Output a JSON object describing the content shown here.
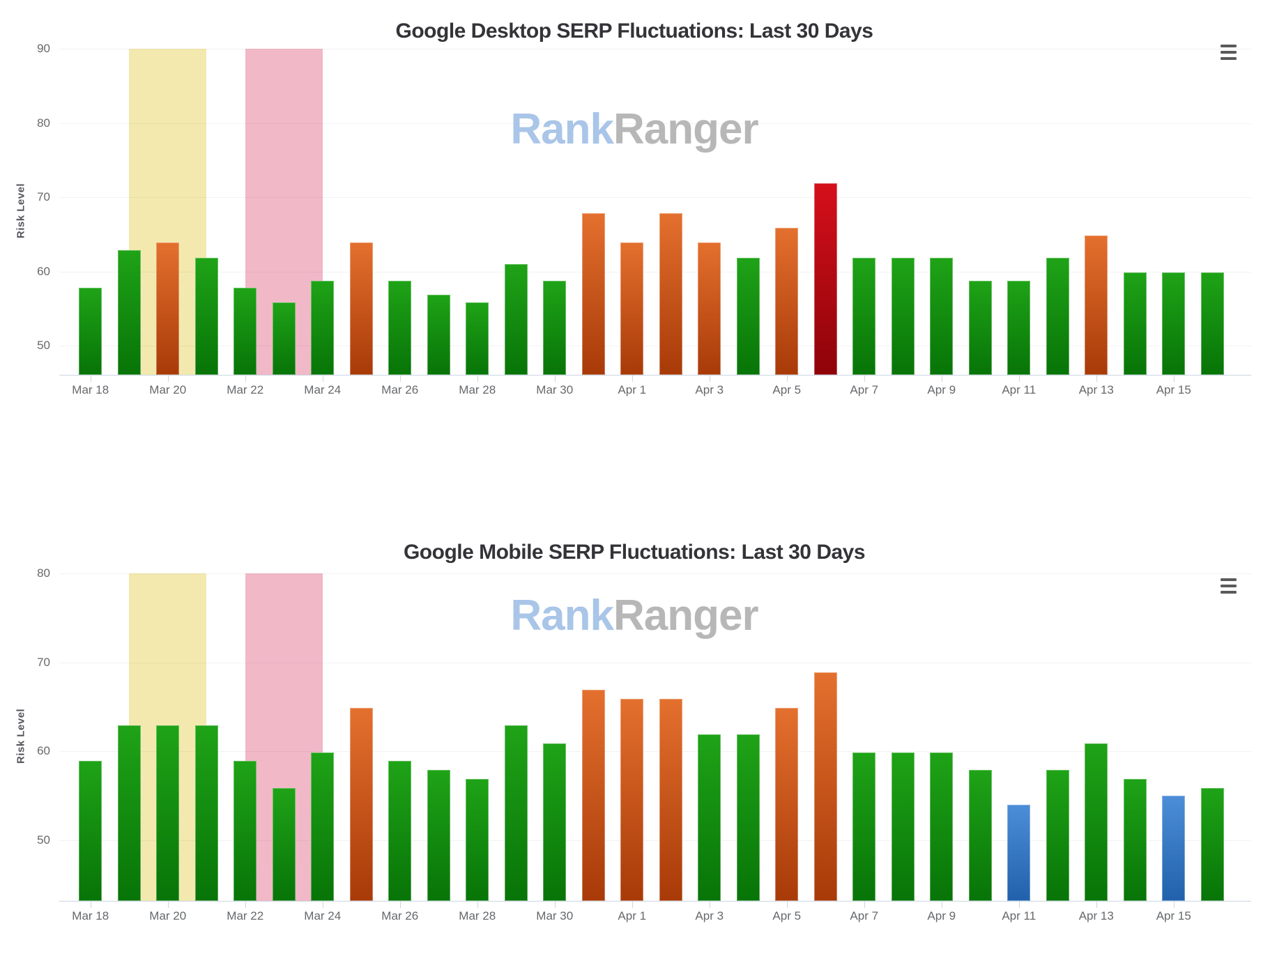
{
  "colors": {
    "levels": {
      "green": [
        "#1fa317",
        "#077407"
      ],
      "orange": [
        "#e4702e",
        "#a83a08"
      ],
      "red": [
        "#d5101b",
        "#8e0309"
      ],
      "blue": [
        "#4d8ed8",
        "#2161ac"
      ]
    },
    "band_yellow": "#f3e9ae",
    "band_pink": "#f1b8c7",
    "axis_line": "#c9d6e4",
    "grid_line": "#ececec",
    "tick_text": "#66686b",
    "title_text": "#333338",
    "watermark_blue": "#a9c5e8",
    "watermark_gray": "#b7b7b7"
  },
  "chart_data": [
    {
      "type": "bar",
      "title": "Google Desktop SERP Fluctuations: Last 30 Days",
      "y_axis_label": "Risk Level",
      "watermark": {
        "part1": "Rank",
        "part2": "Ranger"
      },
      "menu_icon": "hamburger-icon",
      "y_ticks": [
        90,
        80,
        70,
        60,
        50
      ],
      "y_max": 90,
      "y_min": 46.1,
      "grid": true,
      "x_tick_labels": [
        "Mar 18",
        "Mar 20",
        "Mar 22",
        "Mar 24",
        "Mar 26",
        "Mar 28",
        "Mar 30",
        "Apr 1",
        "Apr 3",
        "Apr 5",
        "Apr 7",
        "Apr 9",
        "Apr 11",
        "Apr 13",
        "Apr 15"
      ],
      "bands": [
        {
          "name": "yellow-highlight",
          "from_index": 1,
          "to_index": 3,
          "color": "#f3e9ae"
        },
        {
          "name": "pink-highlight",
          "from_index": 4,
          "to_index": 6,
          "color": "#f1b8c7"
        }
      ],
      "points": [
        {
          "date": "Mar 18",
          "value": 57.8,
          "level": "green"
        },
        {
          "date": "Mar 19",
          "value": 62.9,
          "level": "green"
        },
        {
          "date": "Mar 20",
          "value": 63.9,
          "level": "orange"
        },
        {
          "date": "Mar 21",
          "value": 61.9,
          "level": "green"
        },
        {
          "date": "Mar 22",
          "value": 57.8,
          "level": "green"
        },
        {
          "date": "Mar 23",
          "value": 55.9,
          "level": "green"
        },
        {
          "date": "Mar 24",
          "value": 58.8,
          "level": "green"
        },
        {
          "date": "Mar 25",
          "value": 63.9,
          "level": "orange"
        },
        {
          "date": "Mar 26",
          "value": 58.8,
          "level": "green"
        },
        {
          "date": "Mar 27",
          "value": 56.9,
          "level": "green"
        },
        {
          "date": "Mar 28",
          "value": 55.9,
          "level": "green"
        },
        {
          "date": "Mar 29",
          "value": 61.0,
          "level": "green"
        },
        {
          "date": "Mar 30",
          "value": 58.8,
          "level": "green"
        },
        {
          "date": "Mar 31",
          "value": 67.9,
          "level": "orange"
        },
        {
          "date": "Apr 1",
          "value": 63.9,
          "level": "orange"
        },
        {
          "date": "Apr 2",
          "value": 67.9,
          "level": "orange"
        },
        {
          "date": "Apr 3",
          "value": 63.9,
          "level": "orange"
        },
        {
          "date": "Apr 4",
          "value": 61.9,
          "level": "green"
        },
        {
          "date": "Apr 5",
          "value": 65.9,
          "level": "orange"
        },
        {
          "date": "Apr 6",
          "value": 71.9,
          "level": "red"
        },
        {
          "date": "Apr 7",
          "value": 61.9,
          "level": "green"
        },
        {
          "date": "Apr 8",
          "value": 61.9,
          "level": "green"
        },
        {
          "date": "Apr 9",
          "value": 61.9,
          "level": "green"
        },
        {
          "date": "Apr 10",
          "value": 58.8,
          "level": "green"
        },
        {
          "date": "Apr 11",
          "value": 58.8,
          "level": "green"
        },
        {
          "date": "Apr 12",
          "value": 61.9,
          "level": "green"
        },
        {
          "date": "Apr 13",
          "value": 64.9,
          "level": "orange"
        },
        {
          "date": "Apr 14",
          "value": 59.9,
          "level": "green"
        },
        {
          "date": "Apr 15",
          "value": 59.9,
          "level": "green"
        },
        {
          "date": "Apr 16",
          "value": 59.9,
          "level": "green"
        }
      ]
    },
    {
      "type": "bar",
      "title": "Google Mobile SERP Fluctuations: Last 30 Days",
      "y_axis_label": "Risk Level",
      "watermark": {
        "part1": "Rank",
        "part2": "Ranger"
      },
      "menu_icon": "hamburger-icon",
      "y_ticks": [
        80,
        70,
        60,
        50
      ],
      "y_max": 80,
      "y_min": 43.2,
      "grid": true,
      "x_tick_labels": [
        "Mar 18",
        "Mar 20",
        "Mar 22",
        "Mar 24",
        "Mar 26",
        "Mar 28",
        "Mar 30",
        "Apr 1",
        "Apr 3",
        "Apr 5",
        "Apr 7",
        "Apr 9",
        "Apr 11",
        "Apr 13",
        "Apr 15"
      ],
      "bands": [
        {
          "name": "yellow-highlight",
          "from_index": 1,
          "to_index": 3,
          "color": "#f3e9ae"
        },
        {
          "name": "pink-highlight",
          "from_index": 4,
          "to_index": 6,
          "color": "#f1b8c7"
        }
      ],
      "points": [
        {
          "date": "Mar 18",
          "value": 58.9,
          "level": "green"
        },
        {
          "date": "Mar 19",
          "value": 62.9,
          "level": "green"
        },
        {
          "date": "Mar 20",
          "value": 62.9,
          "level": "green"
        },
        {
          "date": "Mar 21",
          "value": 62.9,
          "level": "green"
        },
        {
          "date": "Mar 22",
          "value": 58.9,
          "level": "green"
        },
        {
          "date": "Mar 23",
          "value": 55.9,
          "level": "green"
        },
        {
          "date": "Mar 24",
          "value": 59.9,
          "level": "green"
        },
        {
          "date": "Mar 25",
          "value": 64.9,
          "level": "orange"
        },
        {
          "date": "Mar 26",
          "value": 58.9,
          "level": "green"
        },
        {
          "date": "Mar 27",
          "value": 57.9,
          "level": "green"
        },
        {
          "date": "Mar 28",
          "value": 56.9,
          "level": "green"
        },
        {
          "date": "Mar 29",
          "value": 62.9,
          "level": "green"
        },
        {
          "date": "Mar 30",
          "value": 60.9,
          "level": "green"
        },
        {
          "date": "Mar 31",
          "value": 66.9,
          "level": "orange"
        },
        {
          "date": "Apr 1",
          "value": 65.9,
          "level": "orange"
        },
        {
          "date": "Apr 2",
          "value": 65.9,
          "level": "orange"
        },
        {
          "date": "Apr 3",
          "value": 61.9,
          "level": "green"
        },
        {
          "date": "Apr 4",
          "value": 61.9,
          "level": "green"
        },
        {
          "date": "Apr 5",
          "value": 64.9,
          "level": "orange"
        },
        {
          "date": "Apr 6",
          "value": 68.9,
          "level": "orange"
        },
        {
          "date": "Apr 7",
          "value": 59.9,
          "level": "green"
        },
        {
          "date": "Apr 8",
          "value": 59.9,
          "level": "green"
        },
        {
          "date": "Apr 9",
          "value": 59.9,
          "level": "green"
        },
        {
          "date": "Apr 10",
          "value": 57.9,
          "level": "green"
        },
        {
          "date": "Apr 11",
          "value": 54.0,
          "level": "blue"
        },
        {
          "date": "Apr 12",
          "value": 57.9,
          "level": "green"
        },
        {
          "date": "Apr 13",
          "value": 60.9,
          "level": "green"
        },
        {
          "date": "Apr 14",
          "value": 56.9,
          "level": "green"
        },
        {
          "date": "Apr 15",
          "value": 55.0,
          "level": "blue"
        },
        {
          "date": "Apr 16",
          "value": 55.9,
          "level": "green"
        }
      ]
    }
  ]
}
